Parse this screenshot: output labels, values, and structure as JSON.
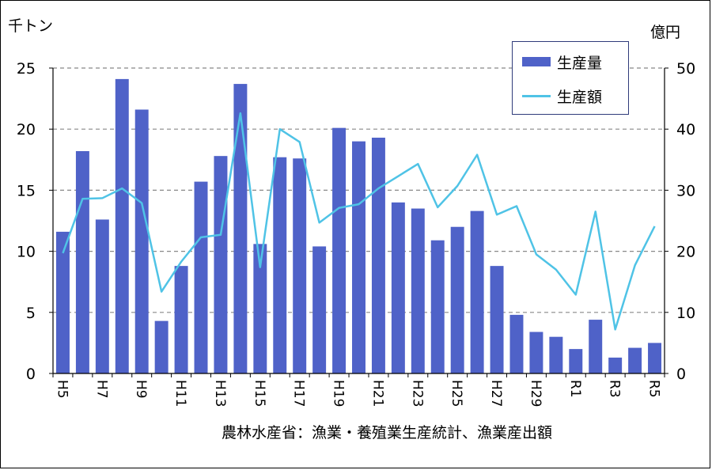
{
  "chart_data": {
    "type": "bar+line",
    "y_left_label": "千トン",
    "y_right_label": "億円",
    "y_left_range": [
      0,
      25
    ],
    "y_right_range": [
      0,
      50
    ],
    "y_left_ticks": [
      "0",
      "5",
      "10",
      "15",
      "20",
      "25"
    ],
    "y_right_ticks": [
      "0",
      "10",
      "20",
      "30",
      "40",
      "50"
    ],
    "categories": [
      "H5",
      "H6",
      "H7",
      "H8",
      "H9",
      "H10",
      "H11",
      "H12",
      "H13",
      "H14",
      "H15",
      "H16",
      "H17",
      "H18",
      "H19",
      "H20",
      "H21",
      "H22",
      "H23",
      "H24",
      "H25",
      "H26",
      "H27",
      "H28",
      "H29",
      "H30",
      "R1",
      "R2",
      "R3",
      "R4",
      "R5"
    ],
    "x_tick_labels": [
      "H5",
      "H7",
      "H9",
      "H11",
      "H13",
      "H15",
      "H17",
      "H19",
      "H21",
      "H23",
      "H25",
      "H27",
      "H29",
      "R1",
      "R3",
      "R5"
    ],
    "series": [
      {
        "name": "生産量",
        "kind": "bar",
        "axis": "left",
        "color": "#4f62c8",
        "values": [
          11.6,
          18.2,
          12.6,
          24.1,
          21.6,
          4.3,
          8.8,
          15.7,
          17.8,
          23.7,
          10.6,
          17.7,
          17.6,
          10.4,
          20.1,
          19.0,
          19.3,
          14.0,
          13.5,
          10.9,
          12.0,
          13.3,
          8.8,
          4.8,
          3.4,
          3.0,
          2.0,
          4.4,
          1.3,
          2.1,
          2.5
        ]
      },
      {
        "name": "生産額",
        "kind": "line",
        "axis": "right",
        "color": "#4fc3e6",
        "values": [
          19.7,
          28.6,
          28.7,
          30.3,
          27.9,
          13.4,
          18.3,
          22.3,
          22.7,
          42.6,
          17.4,
          40.0,
          37.9,
          24.7,
          27.1,
          27.7,
          30.3,
          32.3,
          34.3,
          27.2,
          30.7,
          35.8,
          26.0,
          27.4,
          19.5,
          17.0,
          12.9,
          26.5,
          7.2,
          17.7,
          24.1
        ]
      }
    ],
    "grid": "horizontal-dashed",
    "legend_position": "top-right"
  },
  "source_text": "農林水産省：漁業・養殖業生産統計、漁業産出額"
}
